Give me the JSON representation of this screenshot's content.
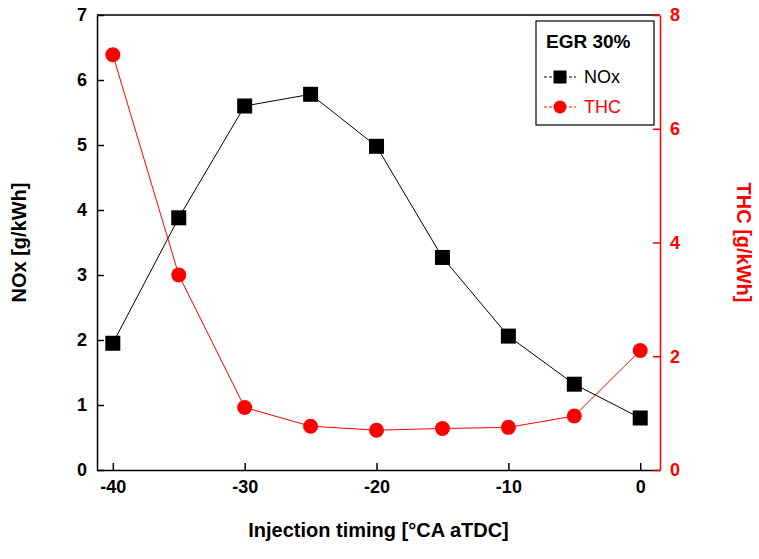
{
  "chart_data": {
    "type": "line",
    "annotation": "EGR 30%",
    "x_label": "Injection timing [°CA aTDC]",
    "y_label": "NOx [g/kWh]",
    "y2_label": "THC [g/kWh]",
    "x": [
      -40,
      -35,
      -30,
      -25,
      -20,
      -15,
      -10,
      -5,
      0
    ],
    "series": [
      {
        "name": "NOx",
        "color": "#000000",
        "marker": "square",
        "line_style": "solid",
        "values": [
          1.95,
          3.88,
          5.6,
          5.78,
          4.98,
          3.27,
          2.06,
          1.32,
          0.8
        ]
      },
      {
        "name": "THC",
        "color": "#ff0000",
        "marker": "circle",
        "line_style": "solid",
        "axis": "y2",
        "values": [
          7.3,
          3.43,
          1.1,
          0.77,
          0.7,
          0.73,
          0.75,
          0.95,
          2.1
        ]
      }
    ],
    "xlim": [
      -41.2,
      1.5
    ],
    "xticks": [
      -40,
      -30,
      -20,
      -10,
      0
    ],
    "ylim": [
      0,
      7
    ],
    "yticks": [
      0,
      1,
      2,
      3,
      4,
      5,
      6,
      7
    ],
    "y2lim": [
      0,
      8
    ],
    "y2ticks": [
      0,
      2,
      4,
      6,
      8
    ],
    "grid": false,
    "legend": "upper right"
  }
}
